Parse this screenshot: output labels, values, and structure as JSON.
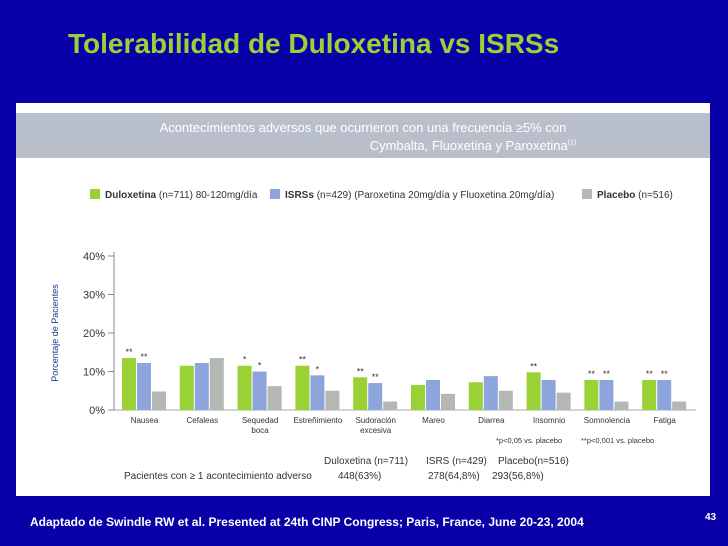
{
  "slide": {
    "title": "Tolerabilidad de Duloxetina vs ISRSs",
    "footer_reference": "Adaptado de Swindle RW et al. Presented at 24th  CINP Congress; Paris, France, June 20-23, 2004",
    "page_number": "43"
  },
  "banner": {
    "line1": "Acontecimientos adversos que ocurrieron con una frecuencia ≥5% con",
    "line2": "Cymbalta, Fluoxetina y Paroxetina",
    "line2_sup": "(1)"
  },
  "legend": [
    {
      "name": "Duloxetina",
      "detail": "(n=711) 80-120mg/día",
      "color": "#9ad235"
    },
    {
      "name": "ISRSs",
      "detail": "(n=429) (Paroxetina 20mg/día y Fluoxetina 20mg/día)",
      "color": "#8ea4dc"
    },
    {
      "name": "Placebo",
      "detail": "(n=516)",
      "color": "#b4b8b4"
    }
  ],
  "chart_data": {
    "type": "bar",
    "ylabel": "Porcentaje de Pacientes",
    "ylim": [
      0,
      40
    ],
    "yticks": [
      "0%",
      "10%",
      "20%",
      "30%",
      "40%"
    ],
    "grid": false,
    "categories": [
      [
        "Nausea"
      ],
      [
        "Cefaleas"
      ],
      [
        "Sequedad",
        "boca"
      ],
      [
        "Estreñimiento"
      ],
      [
        "Sudoración",
        "excesiva"
      ],
      [
        "Mareo"
      ],
      [
        "Diarrea"
      ],
      [
        "Insomnio"
      ],
      [
        "Somnolencia"
      ],
      [
        "Fatiga"
      ]
    ],
    "series": [
      {
        "name": "Duloxetina",
        "color": "#9ad235",
        "values": [
          13.5,
          11.5,
          11.5,
          11.5,
          8.5,
          6.5,
          7.2,
          9.8,
          7.8,
          7.8
        ]
      },
      {
        "name": "ISRSs",
        "color": "#8ea4dc",
        "values": [
          12.2,
          12.2,
          10.0,
          9.0,
          7.0,
          7.8,
          8.8,
          7.8,
          7.8,
          7.8
        ]
      },
      {
        "name": "Placebo",
        "color": "#b4b8b4",
        "values": [
          4.8,
          13.5,
          6.2,
          5.0,
          2.2,
          4.2,
          5.0,
          4.5,
          2.2,
          2.2
        ]
      }
    ],
    "significance": [
      [
        "**",
        "**",
        ""
      ],
      [
        "",
        "",
        ""
      ],
      [
        "*",
        "*",
        ""
      ],
      [
        "**",
        "*",
        ""
      ],
      [
        "**",
        "**",
        ""
      ],
      [
        "",
        "",
        ""
      ],
      [
        "",
        "",
        ""
      ],
      [
        "**",
        "",
        ""
      ],
      [
        "**",
        "**",
        ""
      ],
      [
        "**",
        "**",
        ""
      ]
    ],
    "footnote1": "*p<0,05 vs. placebo",
    "footnote2": "**p<0,001 vs. placebo"
  },
  "summary_table": {
    "headers": [
      "Duloxetina (n=711)",
      "ISRS (n=429)",
      "Placebo(n=516)"
    ],
    "row_label": "Pacientes con ≥ 1 acontecimiento adverso",
    "values": [
      "448(63%)",
      "278(64,8%)",
      "293(56,8%)"
    ]
  }
}
